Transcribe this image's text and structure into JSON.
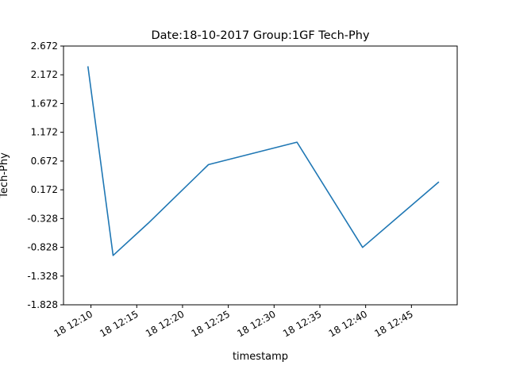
{
  "chart_data": {
    "type": "line",
    "title": "Date:18-10-2017 Group:1GF Tech-Phy",
    "xlabel": "timestamp",
    "ylabel": "Tech-Phy",
    "x_ticks": [
      "18 12:10",
      "18 12:15",
      "18 12:20",
      "18 12:25",
      "18 12:30",
      "18 12:35",
      "18 12:40",
      "18 12:45"
    ],
    "y_ticks": [
      "2.672",
      "2.172",
      "1.672",
      "1.172",
      "0.672",
      "0.172",
      "-0.328",
      "-0.828",
      "-1.328",
      "-1.828"
    ],
    "xlim": [
      "18 12:07",
      "18 12:50"
    ],
    "ylim": [
      -1.828,
      2.672
    ],
    "grid": false,
    "series": [
      {
        "color": "#1f77b4",
        "x": [
          "18 12:09:40",
          "18 12:12:25",
          "18 12:16:15",
          "18 12:22:50",
          "18 12:32:30",
          "18 12:39:40",
          "18 12:48:00"
        ],
        "y": [
          2.32,
          -0.97,
          -0.41,
          0.61,
          1.0,
          -0.83,
          0.31
        ]
      }
    ]
  }
}
